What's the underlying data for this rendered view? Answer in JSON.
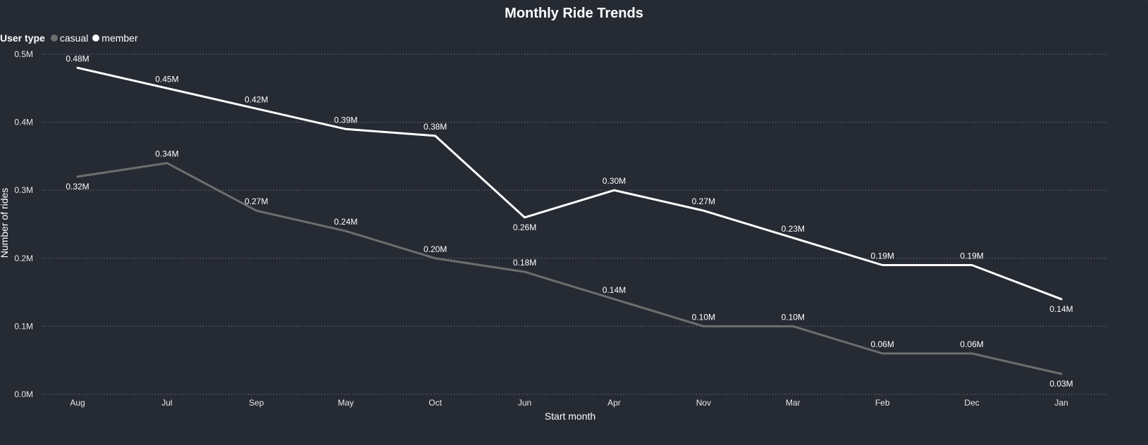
{
  "chart_data": {
    "type": "line",
    "title": "Monthly Ride Trends",
    "legend_title": "User type",
    "legend_position": "top-left",
    "xlabel": "Start month",
    "ylabel": "Number of rides",
    "categories": [
      "Aug",
      "Jul",
      "Sep",
      "May",
      "Oct",
      "Jun",
      "Apr",
      "Nov",
      "Mar",
      "Feb",
      "Dec",
      "Jan"
    ],
    "ylim": [
      0,
      0.5
    ],
    "yticks": [
      0,
      0.1,
      0.2,
      0.3,
      0.4,
      0.5
    ],
    "ytick_labels": [
      "0.0M",
      "0.1M",
      "0.2M",
      "0.3M",
      "0.4M",
      "0.5M"
    ],
    "grid": true,
    "series": [
      {
        "name": "casual",
        "color": "#6e6e6e",
        "values": [
          0.32,
          0.34,
          0.27,
          0.24,
          0.2,
          0.18,
          0.14,
          0.1,
          0.1,
          0.06,
          0.06,
          0.03
        ],
        "labels": [
          "0.32M",
          "0.34M",
          "0.27M",
          "0.24M",
          "0.20M",
          "0.18M",
          "0.14M",
          "0.10M",
          "0.10M",
          "0.06M",
          "0.06M",
          "0.03M"
        ],
        "label_side": [
          "below",
          "above",
          "above",
          "above",
          "above",
          "above",
          "above",
          "above",
          "above",
          "above",
          "above",
          "below"
        ]
      },
      {
        "name": "member",
        "color": "#ffffff",
        "values": [
          0.48,
          0.45,
          0.42,
          0.39,
          0.38,
          0.26,
          0.3,
          0.27,
          0.23,
          0.19,
          0.19,
          0.14
        ],
        "labels": [
          "0.48M",
          "0.45M",
          "0.42M",
          "0.39M",
          "0.38M",
          "0.26M",
          "0.30M",
          "0.27M",
          "0.23M",
          "0.19M",
          "0.19M",
          "0.14M"
        ],
        "label_side": [
          "above",
          "above",
          "above",
          "above",
          "above",
          "below",
          "above",
          "above",
          "above",
          "above",
          "above",
          "below"
        ]
      }
    ]
  }
}
